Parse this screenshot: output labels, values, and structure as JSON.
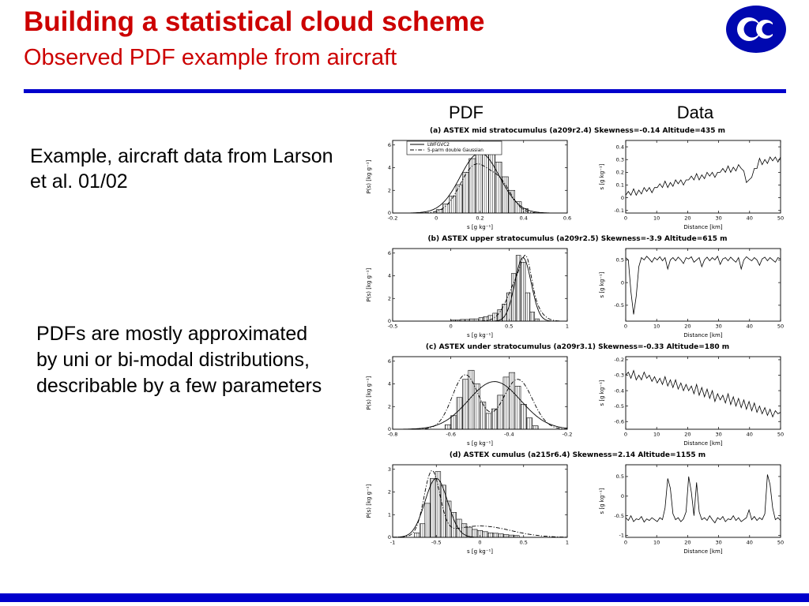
{
  "slide": {
    "title": "Building a statistical cloud scheme",
    "subtitle": "Observed PDF example from aircraft",
    "column_headers": {
      "pdf": "PDF",
      "data": "Data"
    },
    "text_blocks": {
      "example": "Example, aircraft data from Larson et al. 01/02",
      "pdfs": "PDFs are mostly approximated by uni or bi-modal distributions, describable by a few parameters"
    },
    "logo": "ecmwf-logo",
    "colors": {
      "title_red": "#cc0000",
      "line_blue": "#0000cc",
      "logo_blue": "#0008b0"
    }
  },
  "chart_data": [
    {
      "id": "a-pdf",
      "type": "bar",
      "panel": "a",
      "title": "(a)  ASTEX mid stratocumulus (a209r2.4) Skewness=-0.14 Altitude=435 m",
      "legend": [
        "LWFGVC2",
        "5-parm double Gaussian"
      ],
      "xlabel": "s  [g kg⁻¹]",
      "ylabel": "P(s) [kg g⁻¹]",
      "xlim": [
        -0.2,
        0.6
      ],
      "xticks": [
        -0.2,
        0,
        0.2,
        0.4,
        0.6
      ],
      "ylim": [
        0,
        6.4
      ],
      "yticks": [
        0,
        2,
        4,
        6
      ],
      "bins": {
        "start": 0.0,
        "width": 0.03,
        "values": [
          0.3,
          0.8,
          1.5,
          2.5,
          3.6,
          4.8,
          5.6,
          6.0,
          5.5,
          4.5,
          3.2,
          2.0,
          1.0,
          0.4
        ]
      },
      "curves": [
        {
          "style": "solid",
          "components": [
            {
              "mu": 0.2,
              "sigma": 0.09,
              "amp": 5.3
            }
          ]
        },
        {
          "style": "dashdot",
          "components": [
            {
              "mu": 0.18,
              "sigma": 0.07,
              "amp": 4.2
            },
            {
              "mu": 0.3,
              "sigma": 0.05,
              "amp": 2.0
            }
          ]
        }
      ]
    },
    {
      "id": "a-data",
      "type": "line",
      "panel": "a",
      "xlabel": "Distance [km]",
      "ylabel": "s [g kg⁻¹]",
      "xlim": [
        0,
        50
      ],
      "xticks": [
        0,
        10,
        20,
        30,
        40,
        50
      ],
      "ylim": [
        -0.12,
        0.45
      ],
      "yticks": [
        -0.1,
        0,
        0.1,
        0.2,
        0.3,
        0.4
      ],
      "values": [
        0.02,
        0.05,
        0.02,
        0.07,
        0.02,
        0.06,
        0.03,
        0.08,
        0.05,
        0.08,
        0.04,
        0.08,
        0.08,
        0.11,
        0.08,
        0.13,
        0.08,
        0.12,
        0.09,
        0.14,
        0.11,
        0.14,
        0.1,
        0.14,
        0.14,
        0.17,
        0.14,
        0.19,
        0.14,
        0.18,
        0.15,
        0.2,
        0.17,
        0.2,
        0.16,
        0.2,
        0.2,
        0.23,
        0.2,
        0.25,
        0.2,
        0.24,
        0.21,
        0.26,
        0.23,
        0.21,
        0.12,
        0.14,
        0.16,
        0.23,
        0.23,
        0.31,
        0.26,
        0.3,
        0.27,
        0.32,
        0.29,
        0.32,
        0.28,
        0.32
      ]
    },
    {
      "id": "b-pdf",
      "type": "bar",
      "panel": "b",
      "title": "(b)  ASTEX upper stratocumulus (a209r2.5) Skewness=-3.9 Altitude=615 m",
      "xlabel": "s  [g kg⁻¹]",
      "ylabel": "P(s) [kg g⁻¹]",
      "xlim": [
        -0.5,
        1
      ],
      "xticks": [
        -0.5,
        0,
        0.5,
        1
      ],
      "ylim": [
        0,
        6.4
      ],
      "yticks": [
        0,
        2,
        4,
        6
      ],
      "bins": {
        "start": 0.0,
        "width": 0.04,
        "values": [
          0.1,
          0.1,
          0.15,
          0.15,
          0.2,
          0.2,
          0.3,
          0.4,
          0.5,
          0.7,
          1.0,
          1.5,
          2.5,
          4.2,
          5.8,
          5.2,
          2.5,
          0.8,
          0.2
        ]
      },
      "curves": [
        {
          "style": "solid",
          "components": [
            {
              "mu": 0.62,
              "sigma": 0.07,
              "amp": 5.6
            }
          ]
        },
        {
          "style": "dashdot",
          "components": [
            {
              "mu": 0.6,
              "sigma": 0.1,
              "amp": 4.0
            },
            {
              "mu": 0.65,
              "sigma": 0.04,
              "amp": 2.2
            }
          ]
        }
      ]
    },
    {
      "id": "b-data",
      "type": "line",
      "panel": "b",
      "xlabel": "Distance [km]",
      "ylabel": "s [g kg⁻¹]",
      "xlim": [
        0,
        50
      ],
      "xticks": [
        0,
        10,
        20,
        30,
        40,
        50
      ],
      "ylim": [
        -0.85,
        0.75
      ],
      "yticks": [
        -0.5,
        0,
        0.5
      ],
      "values": [
        0.55,
        0.5,
        -0.2,
        -0.7,
        -0.3,
        0.35,
        0.55,
        0.5,
        0.58,
        0.52,
        0.45,
        0.55,
        0.5,
        0.57,
        0.48,
        0.55,
        0.3,
        0.5,
        0.55,
        0.48,
        0.56,
        0.5,
        0.42,
        0.55,
        0.52,
        0.57,
        0.45,
        0.5,
        0.55,
        0.35,
        0.5,
        0.56,
        0.48,
        0.55,
        0.5,
        0.58,
        0.4,
        0.52,
        0.55,
        0.48,
        0.56,
        0.5,
        0.45,
        0.55,
        0.3,
        0.5,
        0.57,
        0.52,
        0.48,
        0.55,
        0.5,
        0.38,
        0.52,
        0.56,
        0.48,
        0.55,
        0.5,
        0.45,
        0.55,
        0.52
      ]
    },
    {
      "id": "c-pdf",
      "type": "bar",
      "panel": "c",
      "title": "(c)  ASTEX under stratocumulus (a209r3.1) Skewness=-0.33 Altitude=180 m",
      "xlabel": "s  [g kg⁻¹]",
      "ylabel": "P(s) [kg g⁻¹]",
      "xlim": [
        -0.8,
        -0.2
      ],
      "xticks": [
        -0.8,
        -0.6,
        -0.4,
        -0.2
      ],
      "ylim": [
        0,
        6.4
      ],
      "yticks": [
        0,
        2,
        4,
        6
      ],
      "bins": {
        "start": -0.62,
        "width": 0.02,
        "values": [
          0.4,
          1.2,
          2.8,
          4.4,
          5.2,
          4.0,
          2.4,
          1.4,
          1.8,
          3.0,
          4.6,
          5.0,
          3.8,
          2.2,
          1.0,
          0.3
        ]
      },
      "curves": [
        {
          "style": "solid",
          "components": [
            {
              "mu": -0.45,
              "sigma": 0.09,
              "amp": 4.2
            }
          ]
        },
        {
          "style": "dashdot",
          "components": [
            {
              "mu": -0.55,
              "sigma": 0.045,
              "amp": 4.8
            },
            {
              "mu": -0.37,
              "sigma": 0.05,
              "amp": 4.4
            }
          ]
        }
      ]
    },
    {
      "id": "c-data",
      "type": "line",
      "panel": "c",
      "xlabel": "Distance [km]",
      "ylabel": "s [g kg⁻¹]",
      "xlim": [
        0,
        50
      ],
      "xticks": [
        0,
        10,
        20,
        30,
        40,
        50
      ],
      "ylim": [
        -0.65,
        -0.18
      ],
      "yticks": [
        -0.2,
        -0.3,
        -0.4,
        -0.5,
        -0.6
      ],
      "values": [
        -0.3,
        -0.28,
        -0.32,
        -0.27,
        -0.33,
        -0.3,
        -0.33,
        -0.28,
        -0.32,
        -0.3,
        -0.34,
        -0.31,
        -0.35,
        -0.32,
        -0.36,
        -0.31,
        -0.37,
        -0.33,
        -0.38,
        -0.33,
        -0.39,
        -0.35,
        -0.4,
        -0.36,
        -0.4,
        -0.37,
        -0.42,
        -0.36,
        -0.43,
        -0.38,
        -0.44,
        -0.39,
        -0.45,
        -0.4,
        -0.47,
        -0.42,
        -0.46,
        -0.43,
        -0.48,
        -0.42,
        -0.49,
        -0.44,
        -0.5,
        -0.45,
        -0.51,
        -0.46,
        -0.52,
        -0.47,
        -0.53,
        -0.48,
        -0.54,
        -0.5,
        -0.55,
        -0.51,
        -0.56,
        -0.52,
        -0.57,
        -0.53,
        -0.55,
        -0.54
      ]
    },
    {
      "id": "d-pdf",
      "type": "bar",
      "panel": "d",
      "title": "(d)  ASTEX cumulus (a215r6.4) Skewness=2.14 Altitude=1155 m",
      "xlabel": "s  [g kg⁻¹]",
      "ylabel": "P(s) [kg g⁻¹]",
      "xlim": [
        -1,
        1
      ],
      "xticks": [
        -1,
        -0.5,
        0,
        0.5,
        1
      ],
      "ylim": [
        0,
        3.2
      ],
      "yticks": [
        0,
        1,
        2,
        3
      ],
      "bins": {
        "start": -0.75,
        "width": 0.06,
        "values": [
          0.2,
          0.6,
          1.5,
          2.6,
          2.9,
          2.3,
          1.6,
          1.1,
          0.8,
          0.6,
          0.45,
          0.35,
          0.3,
          0.25,
          0.2,
          0.18,
          0.15,
          0.12,
          0.1,
          0.08
        ]
      },
      "curves": [
        {
          "style": "solid",
          "components": [
            {
              "mu": -0.5,
              "sigma": 0.13,
              "amp": 2.6
            }
          ]
        },
        {
          "style": "dashdot",
          "components": [
            {
              "mu": -0.55,
              "sigma": 0.09,
              "amp": 2.8
            },
            {
              "mu": 0.0,
              "sigma": 0.35,
              "amp": 0.5
            }
          ]
        }
      ]
    },
    {
      "id": "d-data",
      "type": "line",
      "panel": "d",
      "xlabel": "Distance [km]",
      "ylabel": "s [g kg⁻¹]",
      "xlim": [
        0,
        50
      ],
      "xticks": [
        0,
        10,
        20,
        30,
        40,
        50
      ],
      "ylim": [
        -1.05,
        0.8
      ],
      "yticks": [
        -1,
        -0.5,
        0,
        0.5
      ],
      "values": [
        -0.55,
        -0.62,
        -0.5,
        -0.65,
        -0.58,
        -0.6,
        -0.52,
        -0.66,
        -0.58,
        -0.62,
        -0.55,
        -0.6,
        -0.65,
        -0.55,
        -0.6,
        -0.3,
        0.45,
        0.2,
        -0.45,
        -0.6,
        -0.55,
        -0.65,
        -0.58,
        -0.4,
        0.5,
        0.1,
        -0.5,
        0.35,
        -0.4,
        -0.6,
        -0.55,
        -0.62,
        -0.5,
        -0.6,
        -0.68,
        -0.55,
        -0.6,
        -0.52,
        -0.65,
        -0.58,
        -0.6,
        -0.5,
        -0.62,
        -0.55,
        -0.65,
        -0.6,
        -0.55,
        -0.35,
        -0.6,
        -0.52,
        -0.62,
        -0.55,
        -0.6,
        -0.45,
        0.55,
        0.3,
        -0.3,
        -0.6,
        -0.55,
        -0.62
      ]
    }
  ]
}
